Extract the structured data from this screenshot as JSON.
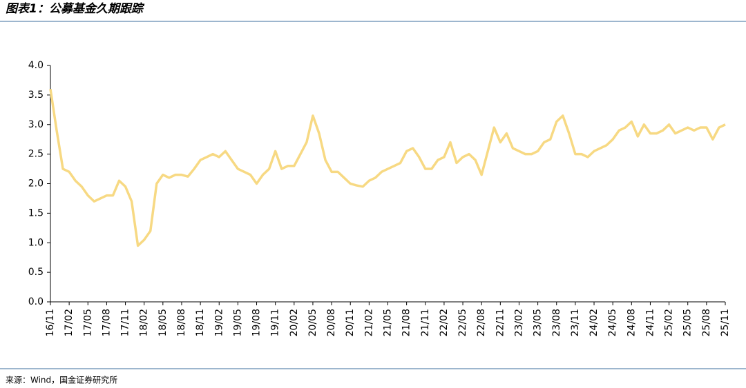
{
  "chart_data": {
    "type": "line",
    "title": "图表1：公募基金久期跟踪",
    "source": "来源：Wind，国金证券研究所",
    "color": "#f7d983",
    "categories": [
      "16/11",
      null,
      null,
      "17/02",
      null,
      null,
      "17/05",
      null,
      null,
      "17/08",
      null,
      null,
      "17/11",
      null,
      null,
      "18/02",
      null,
      null,
      "18/05",
      null,
      null,
      "18/08",
      null,
      null,
      "18/11",
      null,
      null,
      "19/02",
      null,
      null,
      "19/05",
      null,
      null,
      "19/08",
      null,
      null,
      "19/11",
      null,
      null,
      "20/02",
      null,
      null,
      "20/05",
      null,
      null,
      "20/08",
      null,
      null,
      "20/11",
      null,
      null,
      "21/02",
      null,
      null,
      "21/05",
      null,
      null,
      "21/08",
      null,
      null,
      "21/11",
      null,
      null,
      "22/02",
      null,
      null,
      "22/05",
      null,
      null,
      "22/08",
      null,
      null,
      "22/11",
      null,
      null,
      "23/02",
      null,
      null,
      "23/05",
      null,
      null,
      "23/08",
      null,
      null,
      "23/11",
      null,
      null,
      "24/02",
      null,
      null,
      "24/05",
      null,
      null,
      "24/08",
      null,
      null,
      "24/11",
      null,
      null,
      "25/02",
      null,
      null,
      "25/05",
      null,
      null,
      "25/08",
      null,
      null,
      "25/11"
    ],
    "values": [
      3.6,
      2.9,
      2.25,
      2.2,
      2.05,
      1.95,
      1.8,
      1.7,
      1.75,
      1.8,
      1.8,
      2.05,
      1.95,
      1.7,
      0.95,
      1.05,
      1.2,
      2.0,
      2.15,
      2.1,
      2.15,
      2.15,
      2.12,
      2.25,
      2.4,
      2.45,
      2.5,
      2.45,
      2.55,
      2.4,
      2.25,
      2.2,
      2.15,
      2.0,
      2.15,
      2.25,
      2.55,
      2.25,
      2.3,
      2.3,
      2.5,
      2.7,
      3.15,
      2.85,
      2.4,
      2.2,
      2.2,
      2.1,
      2.0,
      1.97,
      1.95,
      2.05,
      2.1,
      2.2,
      2.25,
      2.3,
      2.35,
      2.55,
      2.6,
      2.45,
      2.25,
      2.25,
      2.4,
      2.45,
      2.7,
      2.35,
      2.45,
      2.5,
      2.4,
      2.15,
      2.55,
      2.95,
      2.7,
      2.85,
      2.6,
      2.55,
      2.5,
      2.5,
      2.55,
      2.7,
      2.75,
      3.05,
      3.15,
      2.85,
      2.5,
      2.5,
      2.45,
      2.55,
      2.6,
      2.65,
      2.75,
      2.9,
      2.95,
      3.05,
      2.8,
      3.0,
      2.85,
      2.85,
      2.9,
      3.0,
      2.85,
      2.9,
      2.95,
      2.9,
      2.95,
      2.95,
      2.75,
      2.95,
      3.0
    ],
    "ylim": [
      0,
      4
    ],
    "yticks": [
      {
        "value": 0,
        "label": "0.0"
      },
      0.5,
      {
        "value": 1,
        "label": "1.0"
      },
      1.5,
      {
        "value": 2,
        "label": "2.0"
      },
      2.5,
      {
        "value": 3,
        "label": "3.0"
      },
      3.5,
      {
        "value": 4,
        "label": "4.0"
      }
    ],
    "grid": false
  }
}
